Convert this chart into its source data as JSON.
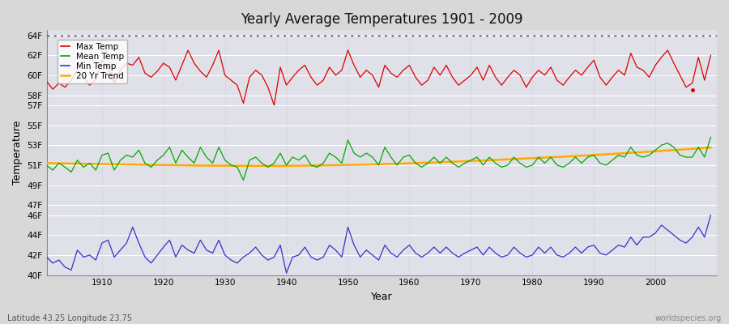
{
  "years": [
    1901,
    1902,
    1903,
    1904,
    1905,
    1906,
    1907,
    1908,
    1909,
    1910,
    1911,
    1912,
    1913,
    1914,
    1915,
    1916,
    1917,
    1918,
    1919,
    1920,
    1921,
    1922,
    1923,
    1924,
    1925,
    1926,
    1927,
    1928,
    1929,
    1930,
    1931,
    1932,
    1933,
    1934,
    1935,
    1936,
    1937,
    1938,
    1939,
    1940,
    1941,
    1942,
    1943,
    1944,
    1945,
    1946,
    1947,
    1948,
    1949,
    1950,
    1951,
    1952,
    1953,
    1954,
    1955,
    1956,
    1957,
    1958,
    1959,
    1960,
    1961,
    1962,
    1963,
    1964,
    1965,
    1966,
    1967,
    1968,
    1969,
    1970,
    1971,
    1972,
    1973,
    1974,
    1975,
    1976,
    1977,
    1978,
    1979,
    1980,
    1981,
    1982,
    1983,
    1984,
    1985,
    1986,
    1987,
    1988,
    1989,
    1990,
    1991,
    1992,
    1993,
    1994,
    1995,
    1996,
    1997,
    1998,
    1999,
    2000,
    2001,
    2002,
    2003,
    2004,
    2005,
    2006,
    2007,
    2008,
    2009
  ],
  "max_temps": [
    59.4,
    58.6,
    59.2,
    58.8,
    59.5,
    60.5,
    59.8,
    59.0,
    59.6,
    61.5,
    60.8,
    59.2,
    60.5,
    61.2,
    61.0,
    61.8,
    60.2,
    59.8,
    60.4,
    61.2,
    60.8,
    59.5,
    61.0,
    62.5,
    61.2,
    60.4,
    59.8,
    61.0,
    62.5,
    60.0,
    59.5,
    59.0,
    57.2,
    59.8,
    60.5,
    60.0,
    58.8,
    57.0,
    60.8,
    59.0,
    59.8,
    60.5,
    61.0,
    59.8,
    59.0,
    59.5,
    60.8,
    60.0,
    60.5,
    62.5,
    61.0,
    59.8,
    60.5,
    60.0,
    58.8,
    61.0,
    60.2,
    59.8,
    60.5,
    61.0,
    59.8,
    59.0,
    59.5,
    60.8,
    60.0,
    61.0,
    59.8,
    59.0,
    59.5,
    60.0,
    60.8,
    59.5,
    61.0,
    59.8,
    59.0,
    59.8,
    60.5,
    60.0,
    58.8,
    59.8,
    60.5,
    60.0,
    60.8,
    59.5,
    59.0,
    59.8,
    60.5,
    60.0,
    60.8,
    61.5,
    59.8,
    59.0,
    59.8,
    60.5,
    60.0,
    62.2,
    60.8,
    60.5,
    59.8,
    61.0,
    61.8,
    62.5,
    61.2,
    60.0,
    58.8,
    59.2,
    61.8,
    59.5,
    62.0
  ],
  "mean_temps": [
    51.0,
    50.5,
    51.2,
    50.8,
    50.3,
    51.5,
    50.8,
    51.2,
    50.5,
    52.0,
    52.2,
    50.5,
    51.5,
    52.0,
    51.8,
    52.5,
    51.2,
    50.8,
    51.5,
    52.0,
    52.8,
    51.2,
    52.5,
    51.8,
    51.2,
    52.8,
    51.8,
    51.2,
    52.8,
    51.5,
    51.0,
    50.8,
    49.5,
    51.5,
    51.8,
    51.2,
    50.8,
    51.2,
    52.2,
    51.0,
    51.8,
    51.5,
    52.0,
    51.0,
    50.8,
    51.2,
    52.2,
    51.8,
    51.2,
    53.5,
    52.2,
    51.8,
    52.2,
    51.8,
    51.0,
    52.8,
    51.8,
    51.0,
    51.8,
    52.0,
    51.2,
    50.8,
    51.2,
    51.8,
    51.2,
    51.8,
    51.2,
    50.8,
    51.2,
    51.5,
    51.8,
    51.0,
    51.8,
    51.2,
    50.8,
    51.0,
    51.8,
    51.2,
    50.8,
    51.0,
    51.8,
    51.2,
    51.8,
    51.0,
    50.8,
    51.2,
    51.8,
    51.2,
    51.8,
    52.0,
    51.2,
    51.0,
    51.5,
    52.0,
    51.8,
    52.8,
    52.0,
    51.8,
    52.0,
    52.5,
    53.0,
    53.2,
    52.8,
    52.0,
    51.8,
    51.8,
    52.8,
    51.8,
    53.8
  ],
  "min_temps": [
    41.8,
    41.2,
    41.5,
    40.8,
    40.5,
    42.5,
    41.8,
    42.0,
    41.5,
    43.2,
    43.5,
    41.8,
    42.5,
    43.2,
    44.8,
    43.2,
    41.8,
    41.2,
    42.0,
    42.8,
    43.5,
    41.8,
    43.0,
    42.5,
    42.2,
    43.5,
    42.5,
    42.2,
    43.5,
    42.0,
    41.5,
    41.2,
    41.8,
    42.2,
    42.8,
    42.0,
    41.5,
    41.8,
    43.0,
    40.2,
    41.8,
    42.0,
    42.8,
    41.8,
    41.5,
    41.8,
    43.0,
    42.5,
    41.8,
    44.8,
    43.0,
    41.8,
    42.5,
    42.0,
    41.5,
    43.0,
    42.2,
    41.8,
    42.5,
    43.0,
    42.2,
    41.8,
    42.2,
    42.8,
    42.2,
    42.8,
    42.2,
    41.8,
    42.2,
    42.5,
    42.8,
    42.0,
    42.8,
    42.2,
    41.8,
    42.0,
    42.8,
    42.2,
    41.8,
    42.0,
    42.8,
    42.2,
    42.8,
    42.0,
    41.8,
    42.2,
    42.8,
    42.2,
    42.8,
    43.0,
    42.2,
    42.0,
    42.5,
    43.0,
    42.8,
    43.8,
    43.0,
    43.8,
    43.8,
    44.2,
    45.0,
    44.5,
    44.0,
    43.5,
    43.2,
    43.8,
    44.8,
    43.8,
    46.0
  ],
  "trend_vals": [
    51.2,
    51.19,
    51.18,
    51.17,
    51.16,
    51.15,
    51.14,
    51.13,
    51.12,
    51.11,
    51.1,
    51.09,
    51.08,
    51.07,
    51.06,
    51.05,
    51.04,
    51.03,
    51.02,
    51.01,
    51.0,
    51.0,
    50.99,
    50.98,
    50.97,
    50.96,
    50.96,
    50.95,
    50.95,
    50.94,
    50.94,
    50.93,
    50.93,
    50.93,
    50.93,
    50.93,
    50.93,
    50.93,
    50.93,
    50.93,
    50.94,
    50.94,
    50.95,
    50.96,
    50.97,
    50.98,
    50.99,
    51.0,
    51.01,
    51.02,
    51.03,
    51.05,
    51.06,
    51.08,
    51.09,
    51.11,
    51.13,
    51.15,
    51.17,
    51.19,
    51.21,
    51.23,
    51.25,
    51.27,
    51.3,
    51.32,
    51.34,
    51.37,
    51.39,
    51.42,
    51.44,
    51.47,
    51.5,
    51.52,
    51.55,
    51.58,
    51.61,
    51.64,
    51.67,
    51.7,
    51.73,
    51.76,
    51.79,
    51.82,
    51.85,
    51.88,
    51.92,
    51.95,
    51.98,
    52.02,
    52.05,
    52.09,
    52.12,
    52.16,
    52.2,
    52.23,
    52.27,
    52.31,
    52.35,
    52.39,
    52.43,
    52.47,
    52.51,
    52.55,
    52.59,
    52.63,
    52.67,
    52.72,
    52.76
  ],
  "title": "Yearly Average Temperatures 1901 - 2009",
  "xlabel": "Year",
  "ylabel": "Temperature",
  "lat_lon_label": "Latitude 43.25 Longitude 23.75",
  "source_label": "worldspecies.org",
  "ylim": [
    40.0,
    64.5
  ],
  "xlim": [
    1901,
    2010
  ],
  "bg_color": "#e0e0e8",
  "fig_bg_color": "#d8d8d8",
  "grid_color_h": "#ffffff",
  "grid_color_v": "#ccccdd",
  "max_color": "#dd0000",
  "mean_color": "#00aa00",
  "min_color": "#3333cc",
  "trend_color": "#ffaa00",
  "dotted_line_y": 64.0,
  "dot_year": 2006,
  "dot_val": 58.5,
  "legend_entries": [
    "Max Temp",
    "Mean Temp",
    "Min Temp",
    "20 Yr Trend"
  ],
  "legend_colors": [
    "#dd0000",
    "#00aa00",
    "#3333cc",
    "#ffaa00"
  ],
  "ytick_positions": [
    40,
    42,
    44,
    46,
    47,
    49,
    51,
    53,
    55,
    57,
    58,
    60,
    62,
    64
  ],
  "ytick_labels": [
    "40F",
    "42F",
    "44F",
    "46F",
    "47F",
    "49F",
    "51F",
    "53F",
    "55F",
    "57F",
    "58F",
    "60F",
    "62F",
    "64F"
  ],
  "xtick_positions": [
    1910,
    1920,
    1930,
    1940,
    1950,
    1960,
    1970,
    1980,
    1990,
    2000
  ],
  "xtick_labels": [
    "1910",
    "1920",
    "1930",
    "1940",
    "1950",
    "1960",
    "1970",
    "1980",
    "1990",
    "2000"
  ]
}
